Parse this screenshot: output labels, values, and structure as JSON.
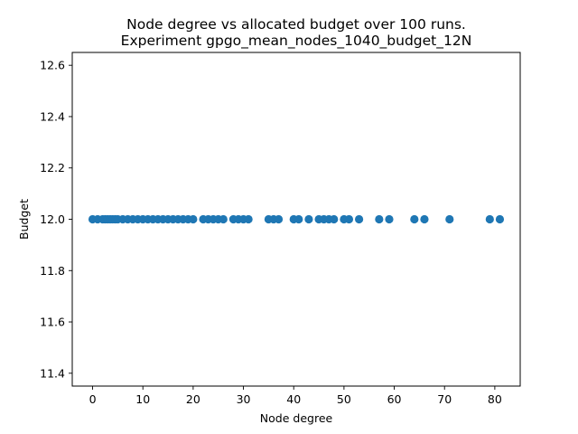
{
  "chart_data": {
    "type": "scatter",
    "title_line1": "Node degree vs allocated budget over 100 runs.",
    "title_line2": "Experiment gpgo_mean_nodes_1040_budget_12N",
    "xlabel": "Node degree",
    "ylabel": "Budget",
    "xlim": [
      -4.05,
      85.05
    ],
    "ylim": [
      11.35,
      12.65
    ],
    "xticks": [
      0,
      10,
      20,
      30,
      40,
      50,
      60,
      70,
      80
    ],
    "yticks": [
      11.4,
      11.6,
      11.8,
      12.0,
      12.2,
      12.4,
      12.6
    ],
    "ytick_labels": [
      "11.4",
      "11.6",
      "11.8",
      "12.0",
      "12.2",
      "12.4",
      "12.6"
    ],
    "marker_color": "#1f77b4",
    "grid": false,
    "legend": "none",
    "x": [
      0,
      1,
      2,
      2.5,
      3,
      3.5,
      4,
      4.5,
      5,
      6,
      7,
      8,
      9,
      10,
      11,
      12,
      13,
      14,
      15,
      16,
      17,
      18,
      19,
      20,
      22,
      23,
      24,
      25,
      26,
      28,
      29,
      30,
      31,
      35,
      36,
      37,
      40,
      41,
      43,
      45,
      46,
      47,
      48,
      50,
      51,
      53,
      57,
      59,
      64,
      66,
      71,
      79,
      81
    ],
    "y_constant": 12.0
  }
}
